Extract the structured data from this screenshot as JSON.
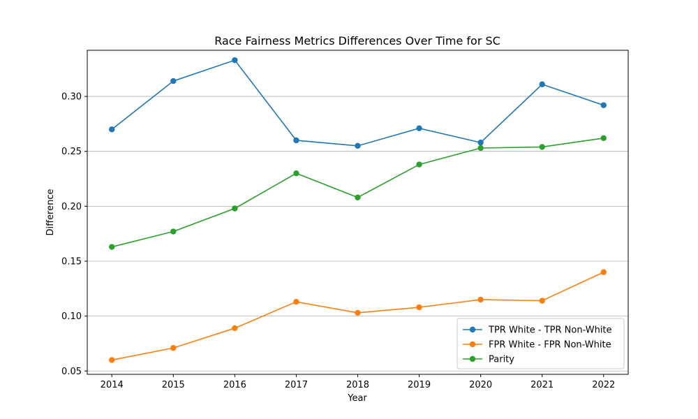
{
  "chart_data": {
    "type": "line",
    "title": "Race Fairness Metrics Differences Over Time for SC",
    "xlabel": "Year",
    "ylabel": "Difference",
    "x": [
      2014,
      2015,
      2016,
      2017,
      2018,
      2019,
      2020,
      2021,
      2022
    ],
    "xtick_labels": [
      "2014",
      "2015",
      "2016",
      "2017",
      "2018",
      "2019",
      "2020",
      "2021",
      "2022"
    ],
    "ylim": [
      0.047,
      0.342
    ],
    "yticks": [
      0.05,
      0.1,
      0.15,
      0.2,
      0.25,
      0.3
    ],
    "ytick_labels": [
      "0.05",
      "0.10",
      "0.15",
      "0.20",
      "0.25",
      "0.30"
    ],
    "grid": "y-axis only",
    "legend_position": "lower-right",
    "series": [
      {
        "name": "TPR White - TPR Non-White",
        "color": "#1f77b4",
        "values": [
          0.27,
          0.314,
          0.333,
          0.26,
          0.255,
          0.271,
          0.258,
          0.311,
          0.292
        ]
      },
      {
        "name": "FPR White - FPR Non-White",
        "color": "#ff7f0e",
        "values": [
          0.06,
          0.071,
          0.089,
          0.113,
          0.103,
          0.108,
          0.115,
          0.114,
          0.14
        ]
      },
      {
        "name": "Parity",
        "color": "#2ca02c",
        "values": [
          0.163,
          0.177,
          0.198,
          0.23,
          0.208,
          0.238,
          0.253,
          0.254,
          0.262
        ]
      }
    ]
  }
}
